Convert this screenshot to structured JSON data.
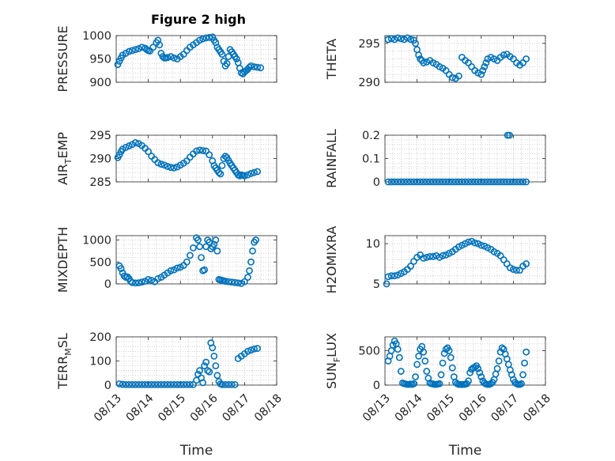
{
  "figure_title": "Figure 2 high",
  "colors": {
    "marker": "#0072BD",
    "axis": "#262626",
    "grid": "#c8c8c8"
  },
  "chart_data": [
    {
      "type": "scatter",
      "ylabel_main": "PRESSURE",
      "ylabel_sub": "",
      "ylabel_tail": "",
      "ylim": [
        900,
        1000
      ],
      "yticks": [
        900,
        950,
        1000
      ],
      "show_xticklabels": false,
      "x_range": [
        0,
        5
      ],
      "x": [
        0.05,
        0.1,
        0.15,
        0.2,
        0.3,
        0.4,
        0.5,
        0.6,
        0.7,
        0.8,
        0.9,
        0.95,
        1.0,
        1.05,
        1.15,
        1.25,
        1.3,
        1.35,
        1.4,
        1.45,
        1.5,
        1.55,
        1.6,
        1.7,
        1.8,
        1.9,
        2.0,
        2.1,
        2.2,
        2.3,
        2.4,
        2.5,
        2.6,
        2.7,
        2.8,
        2.9,
        3.0,
        3.05,
        3.1,
        3.15,
        3.2,
        3.25,
        3.3,
        3.35,
        3.4,
        3.45,
        3.5,
        3.55,
        3.6,
        3.65,
        3.7,
        3.75,
        3.8,
        3.85,
        3.9,
        3.95,
        4.0,
        4.05,
        4.1,
        4.15,
        4.2,
        4.3,
        4.4,
        4.5
      ],
      "y": [
        938,
        945,
        952,
        958,
        962,
        966,
        968,
        970,
        972,
        975,
        973,
        970,
        968,
        967,
        975,
        985,
        990,
        980,
        962,
        955,
        952,
        952,
        953,
        955,
        952,
        950,
        955,
        960,
        968,
        975,
        980,
        985,
        990,
        993,
        995,
        996,
        997,
        990,
        985,
        975,
        970,
        965,
        960,
        945,
        935,
        940,
        955,
        970,
        965,
        960,
        955,
        950,
        942,
        930,
        920,
        918,
        922,
        925,
        928,
        932,
        935,
        933,
        932,
        931
      ]
    },
    {
      "type": "scatter",
      "ylabel_main": "THETA",
      "ylabel_sub": "",
      "ylabel_tail": "",
      "ylim": [
        290,
        296
      ],
      "yticks": [
        290,
        295
      ],
      "show_xticklabels": false,
      "x_range": [
        0,
        5
      ],
      "x": [
        0.1,
        0.2,
        0.3,
        0.4,
        0.5,
        0.6,
        0.7,
        0.8,
        0.9,
        0.95,
        1.0,
        1.05,
        1.1,
        1.15,
        1.2,
        1.3,
        1.4,
        1.5,
        1.6,
        1.7,
        1.8,
        1.9,
        2.0,
        2.1,
        2.2,
        2.3,
        2.4,
        2.5,
        2.6,
        2.7,
        2.8,
        2.9,
        3.0,
        3.05,
        3.1,
        3.15,
        3.2,
        3.3,
        3.4,
        3.5,
        3.6,
        3.7,
        3.8,
        3.9,
        4.0,
        4.1,
        4.2,
        4.3,
        4.4
      ],
      "y": [
        295.5,
        295.6,
        295.5,
        295.7,
        295.6,
        295.5,
        295.7,
        295.5,
        295.4,
        295,
        294.2,
        293.5,
        293,
        292.8,
        292.5,
        292.6,
        292.8,
        292.5,
        292.3,
        292.0,
        291.8,
        291.5,
        291.0,
        290.6,
        290.5,
        290.8,
        293.2,
        292.8,
        292.5,
        292.0,
        291.5,
        291.2,
        291.0,
        291.5,
        292,
        292.5,
        293,
        293.2,
        293.0,
        292.8,
        293.2,
        293.5,
        293.6,
        293.3,
        293.0,
        292.5,
        292.2,
        292.5,
        293.0
      ]
    },
    {
      "type": "scatter",
      "ylabel_main": "AIR",
      "ylabel_sub": "T",
      "ylabel_tail": "EMP",
      "ylim": [
        285,
        295
      ],
      "yticks": [
        285,
        290,
        295
      ],
      "show_xticklabels": false,
      "x_range": [
        0,
        5
      ],
      "x": [
        0.05,
        0.1,
        0.15,
        0.2,
        0.3,
        0.4,
        0.5,
        0.6,
        0.7,
        0.8,
        0.9,
        1.0,
        1.1,
        1.2,
        1.3,
        1.4,
        1.5,
        1.6,
        1.7,
        1.8,
        1.9,
        2.0,
        2.1,
        2.2,
        2.3,
        2.4,
        2.5,
        2.6,
        2.7,
        2.8,
        2.9,
        3.0,
        3.05,
        3.1,
        3.15,
        3.2,
        3.25,
        3.3,
        3.35,
        3.4,
        3.45,
        3.5,
        3.55,
        3.6,
        3.65,
        3.7,
        3.75,
        3.8,
        3.85,
        3.9,
        3.95,
        4.0,
        4.1,
        4.2,
        4.3,
        4.4
      ],
      "y": [
        290.2,
        290.8,
        291.5,
        292,
        292.4,
        292.7,
        293,
        293.4,
        293.2,
        292.8,
        292.2,
        291.5,
        290.5,
        289.8,
        289.1,
        288.8,
        288.6,
        288.3,
        288.1,
        288.0,
        288.2,
        288.6,
        289.0,
        289.5,
        290.3,
        291.0,
        291.6,
        291.8,
        291.7,
        291.6,
        290.8,
        289.5,
        288.5,
        288.0,
        287.5,
        287.0,
        286.7,
        288.5,
        290.0,
        290.5,
        290.2,
        289.6,
        289.0,
        288.5,
        288.0,
        287.5,
        287.0,
        286.5,
        286.3,
        286.5,
        286.4,
        286.3,
        286.5,
        286.8,
        287.0,
        287.2
      ]
    },
    {
      "type": "scatter",
      "ylabel_main": "RAINFALL",
      "ylabel_sub": "",
      "ylabel_tail": "",
      "ylim": [
        0,
        0.2
      ],
      "yticks": [
        0,
        0.1,
        0.2
      ],
      "show_xticklabels": false,
      "x_range": [
        0,
        5
      ],
      "x": [
        0.1,
        0.2,
        0.3,
        0.4,
        0.5,
        0.6,
        0.7,
        0.8,
        0.9,
        1.0,
        1.1,
        1.2,
        1.3,
        1.4,
        1.5,
        1.6,
        1.7,
        1.8,
        1.9,
        2.0,
        2.1,
        2.2,
        2.3,
        2.4,
        2.5,
        2.6,
        2.7,
        2.8,
        2.9,
        3.0,
        3.1,
        3.2,
        3.3,
        3.4,
        3.5,
        3.6,
        3.7,
        3.8,
        3.9,
        4.0,
        4.1,
        4.2,
        4.3,
        4.4,
        3.82,
        3.88
      ],
      "y": [
        0,
        0,
        0,
        0,
        0,
        0,
        0,
        0,
        0,
        0,
        0,
        0,
        0,
        0,
        0,
        0,
        0,
        0,
        0,
        0,
        0,
        0,
        0,
        0,
        0,
        0,
        0,
        0,
        0,
        0,
        0,
        0,
        0,
        0,
        0,
        0,
        0,
        0,
        0,
        0,
        0,
        0,
        0,
        0,
        0.2,
        0.2
      ]
    },
    {
      "type": "scatter",
      "ylabel_main": "MIXDEPTH",
      "ylabel_sub": "",
      "ylabel_tail": "",
      "ylim": [
        0,
        1100
      ],
      "yticks": [
        0,
        500,
        1000
      ],
      "show_xticklabels": false,
      "x_range": [
        0,
        5
      ],
      "x": [
        0.1,
        0.15,
        0.2,
        0.25,
        0.3,
        0.35,
        0.4,
        0.45,
        0.5,
        0.6,
        0.7,
        0.8,
        0.9,
        1.0,
        1.1,
        1.2,
        1.3,
        1.4,
        1.5,
        1.6,
        1.7,
        1.8,
        1.9,
        2.0,
        2.1,
        2.2,
        2.3,
        2.4,
        2.5,
        2.55,
        2.6,
        2.65,
        2.7,
        2.75,
        2.8,
        2.85,
        2.9,
        2.95,
        3.0,
        3.05,
        3.1,
        3.15,
        3.2,
        3.25,
        3.3,
        3.35,
        3.4,
        3.5,
        3.6,
        3.7,
        3.8,
        3.9,
        4.0,
        4.1,
        4.15,
        4.2,
        4.25,
        4.3,
        4.35
      ],
      "y": [
        410,
        350,
        250,
        180,
        150,
        160,
        120,
        60,
        30,
        20,
        25,
        40,
        60,
        100,
        80,
        50,
        120,
        150,
        200,
        250,
        300,
        320,
        360,
        380,
        420,
        500,
        650,
        820,
        1050,
        1000,
        850,
        600,
        300,
        320,
        850,
        1000,
        950,
        800,
        850,
        900,
        1000,
        750,
        100,
        90,
        80,
        70,
        60,
        50,
        40,
        30,
        20,
        10,
        50,
        150,
        300,
        500,
        750,
        950,
        1000
      ]
    },
    {
      "type": "scatter",
      "ylabel_main": "H2OMIXRA",
      "ylabel_sub": "",
      "ylabel_tail": "",
      "ylim": [
        5,
        11
      ],
      "yticks": [
        5,
        10
      ],
      "show_xticklabels": false,
      "x_range": [
        0,
        5
      ],
      "x": [
        0.05,
        0.1,
        0.2,
        0.3,
        0.4,
        0.5,
        0.6,
        0.7,
        0.8,
        0.9,
        1.0,
        1.1,
        1.2,
        1.3,
        1.4,
        1.5,
        1.6,
        1.7,
        1.8,
        1.9,
        2.0,
        2.1,
        2.2,
        2.3,
        2.4,
        2.5,
        2.6,
        2.7,
        2.8,
        2.9,
        3.0,
        3.1,
        3.2,
        3.3,
        3.4,
        3.5,
        3.6,
        3.7,
        3.8,
        3.9,
        4.0,
        4.1,
        4.2,
        4.3,
        4.4
      ],
      "y": [
        5.0,
        5.9,
        6.0,
        6.0,
        6.1,
        6.3,
        6.5,
        6.8,
        7.2,
        7.8,
        8.3,
        8.6,
        8.2,
        8.3,
        8.4,
        8.4,
        8.5,
        8.3,
        8.5,
        8.6,
        8.8,
        9.0,
        9.3,
        9.6,
        9.8,
        10.0,
        10.2,
        10.3,
        10.1,
        10.0,
        9.8,
        9.7,
        9.5,
        9.3,
        9.0,
        8.8,
        8.5,
        8.0,
        7.5,
        7.0,
        6.8,
        6.7,
        6.7,
        7.2,
        7.5
      ]
    },
    {
      "type": "scatter",
      "ylabel_main": "TERR",
      "ylabel_sub": "M",
      "ylabel_tail": "SL",
      "ylim": [
        0,
        200
      ],
      "yticks": [
        0,
        100,
        200
      ],
      "show_xticklabels": true,
      "x_range": [
        0,
        5
      ],
      "xtick_positions": [
        0,
        1,
        2,
        3,
        4,
        5
      ],
      "xtick_labels": [
        "08/13",
        "08/14",
        "08/15",
        "08/16",
        "08/17",
        "08/18"
      ],
      "xlabel": "Time",
      "x": [
        0.1,
        0.2,
        0.3,
        0.4,
        0.5,
        0.6,
        0.7,
        0.8,
        0.9,
        1.0,
        1.1,
        1.2,
        1.3,
        1.4,
        1.5,
        1.6,
        1.7,
        1.8,
        1.9,
        2.0,
        2.1,
        2.2,
        2.3,
        2.4,
        2.5,
        2.55,
        2.6,
        2.65,
        2.7,
        2.75,
        2.8,
        2.85,
        2.9,
        2.95,
        3.0,
        3.05,
        3.1,
        3.15,
        3.2,
        3.25,
        3.3,
        3.4,
        3.5,
        3.6,
        3.7,
        3.8,
        3.9,
        4.0,
        4.1,
        4.2,
        4.3,
        4.4
      ],
      "y": [
        5,
        3,
        2,
        2,
        2,
        2,
        2,
        2,
        2,
        2,
        2,
        2,
        2,
        2,
        2,
        2,
        2,
        2,
        2,
        2,
        2,
        2,
        2,
        2,
        20,
        45,
        60,
        30,
        10,
        80,
        95,
        60,
        55,
        175,
        155,
        120,
        80,
        40,
        15,
        5,
        2,
        2,
        2,
        2,
        2,
        110,
        120,
        130,
        140,
        145,
        150,
        152
      ]
    },
    {
      "type": "scatter",
      "ylabel_main": "SUN",
      "ylabel_sub": "F",
      "ylabel_tail": "LUX",
      "ylim": [
        0,
        700
      ],
      "yticks": [
        0,
        500
      ],
      "show_xticklabels": true,
      "x_range": [
        0,
        5
      ],
      "xtick_positions": [
        0,
        1,
        2,
        3,
        4,
        5
      ],
      "xtick_labels": [
        "08/13",
        "08/14",
        "08/15",
        "08/16",
        "08/17",
        "08/18"
      ],
      "xlabel": "Time",
      "x": [
        0.1,
        0.15,
        0.2,
        0.25,
        0.3,
        0.35,
        0.4,
        0.45,
        0.5,
        0.55,
        0.6,
        0.65,
        0.7,
        0.75,
        0.8,
        0.85,
        0.9,
        0.95,
        1.0,
        1.05,
        1.1,
        1.15,
        1.2,
        1.25,
        1.3,
        1.35,
        1.4,
        1.45,
        1.5,
        1.55,
        1.6,
        1.65,
        1.7,
        1.75,
        1.8,
        1.85,
        1.9,
        1.95,
        2.0,
        2.05,
        2.1,
        2.15,
        2.2,
        2.25,
        2.3,
        2.35,
        2.4,
        2.45,
        2.5,
        2.55,
        2.6,
        2.65,
        2.7,
        2.75,
        2.8,
        2.85,
        2.9,
        2.95,
        3.0,
        3.05,
        3.1,
        3.15,
        3.2,
        3.25,
        3.3,
        3.35,
        3.4,
        3.45,
        3.5,
        3.55,
        3.6,
        3.65,
        3.7,
        3.75,
        3.8,
        3.85,
        3.9,
        3.95,
        4.0,
        4.05,
        4.1,
        4.15,
        4.2,
        4.25,
        4.3,
        4.35,
        4.4
      ],
      "y": [
        350,
        420,
        500,
        580,
        640,
        600,
        520,
        400,
        200,
        30,
        20,
        15,
        10,
        10,
        15,
        10,
        20,
        120,
        300,
        420,
        520,
        560,
        480,
        350,
        200,
        100,
        30,
        20,
        15,
        10,
        10,
        15,
        20,
        150,
        320,
        460,
        520,
        540,
        500,
        400,
        250,
        120,
        40,
        20,
        10,
        10,
        8,
        10,
        12,
        20,
        60,
        180,
        230,
        250,
        260,
        280,
        240,
        180,
        120,
        60,
        30,
        15,
        10,
        10,
        20,
        40,
        80,
        160,
        240,
        350,
        480,
        540,
        520,
        450,
        380,
        300,
        220,
        150,
        80,
        40,
        20,
        10,
        10,
        20,
        150,
        320,
        480
      ]
    }
  ]
}
